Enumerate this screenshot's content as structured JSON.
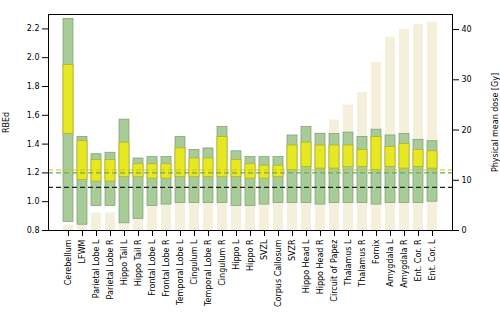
{
  "chart_data": {
    "type": "bar",
    "categories": [
      "Cerebellum",
      "LFWM",
      "Parietal Lobe L",
      "Parietal Lobe R",
      "Hippo Tail L",
      "Hippo Tail R",
      "Frontal Lobe L",
      "Frontal Lobe R",
      "Temporal Lobe L",
      "Cingulum L",
      "Temporal Lobe R",
      "Cingulum R",
      "Hippo L",
      "Hippo R",
      "SVZL",
      "Corpus Callosum",
      "SVZR",
      "Hippo Head L",
      "Hippo Head R",
      "Circuit of Papez",
      "Thalamus L",
      "Thalamus R",
      "Fornix",
      "Amygdala L",
      "Amygdala R",
      "Ent. Cor. R",
      "Ent. Cor. L"
    ],
    "series": [
      {
        "type": "bar",
        "axis": "y2",
        "color": "#f5f0dc",
        "values": [
          1.0,
          1.0,
          3.5,
          3.5,
          6.0,
          6.5,
          8.5,
          8.5,
          10.5,
          11.0,
          11.0,
          11.5,
          12.0,
          12.5,
          13.0,
          14.0,
          14.0,
          18.5,
          19.5,
          22.0,
          25.0,
          27.5,
          33.5,
          38.5,
          40.0,
          41.0,
          41.5
        ]
      },
      {
        "type": "range",
        "color": "#a8cc98",
        "low": [
          0.86,
          0.84,
          0.97,
          0.97,
          0.85,
          0.88,
          0.97,
          0.98,
          0.99,
          0.99,
          0.99,
          0.99,
          0.97,
          0.97,
          0.98,
          0.99,
          0.99,
          0.99,
          0.98,
          0.99,
          0.99,
          0.99,
          0.98,
          0.99,
          0.99,
          0.99,
          1.0
        ],
        "high": [
          2.27,
          1.45,
          1.33,
          1.34,
          1.57,
          1.3,
          1.31,
          1.31,
          1.45,
          1.36,
          1.37,
          1.52,
          1.35,
          1.31,
          1.31,
          1.31,
          1.46,
          1.52,
          1.47,
          1.47,
          1.48,
          1.45,
          1.5,
          1.46,
          1.47,
          1.43,
          1.42
        ]
      },
      {
        "type": "range",
        "color": "#e8e822",
        "low": [
          1.47,
          1.15,
          1.14,
          1.14,
          1.17,
          1.17,
          1.16,
          1.16,
          1.17,
          1.17,
          1.17,
          1.17,
          1.17,
          1.16,
          1.16,
          1.17,
          1.22,
          1.24,
          1.23,
          1.23,
          1.24,
          1.24,
          1.22,
          1.24,
          1.23,
          1.24,
          1.23
        ],
        "high": [
          1.95,
          1.42,
          1.29,
          1.29,
          1.41,
          1.26,
          1.26,
          1.26,
          1.37,
          1.3,
          1.3,
          1.45,
          1.29,
          1.26,
          1.25,
          1.25,
          1.39,
          1.41,
          1.39,
          1.39,
          1.39,
          1.36,
          1.45,
          1.38,
          1.4,
          1.36,
          1.35
        ]
      }
    ],
    "reference_lines": [
      {
        "value": 1.1,
        "color": "#222222",
        "line_style": "dashed"
      },
      {
        "value": 1.2,
        "color": "#6aab5e",
        "line_style": "dashed"
      },
      {
        "value": 1.22,
        "color": "#cccc00",
        "line_style": "dashed"
      }
    ],
    "ylabel": "RBEd",
    "y2label": "Physical mean dose [Gy]",
    "ylim": [
      0.8,
      2.3
    ],
    "yticks": [
      0.8,
      {
        "value": 1,
        "label": "1.0"
      },
      1.2,
      1.4,
      1.6,
      1.8,
      {
        "value": 2,
        "label": "2.0"
      },
      2.2
    ],
    "y2lim": [
      0,
      43
    ],
    "y2ticks": [
      0,
      10,
      20,
      30,
      40
    ],
    "grid": false
  }
}
